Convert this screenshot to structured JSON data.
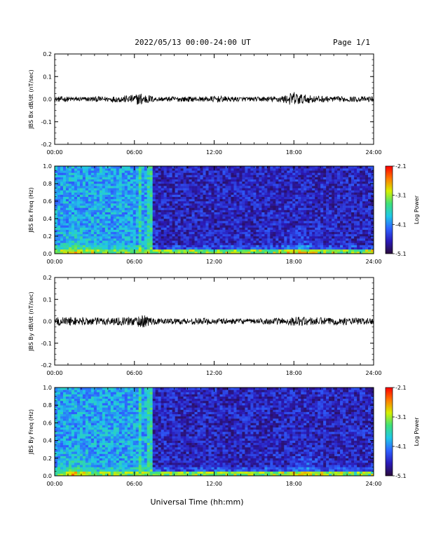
{
  "header": {
    "title": "2022/05/13  00:00-24:00 UT",
    "page": "Page 1/1"
  },
  "x_axis_title": "Universal Time (hh:mm)",
  "colors": {
    "trace": "#000000",
    "colorbar_stops": [
      "#2a0b3a",
      "#2a1ab8",
      "#2e60ff",
      "#20c8e6",
      "#3fe07a",
      "#d6f000",
      "#ff7a00",
      "#ff0000"
    ]
  },
  "chart_data": [
    {
      "type": "line",
      "ylabel": "JBS Bx dB/dt (nT/sec)",
      "x_ticks": [
        "00:00",
        "06:00",
        "12:00",
        "18:00",
        "24:00"
      ],
      "y_ticks": [
        "0.2",
        "0.1",
        "0.0",
        "-0.1",
        "-0.2"
      ],
      "ylim": [
        -0.2,
        0.2
      ],
      "xlim_hours": [
        0,
        24
      ],
      "series": [
        {
          "x_hours": [
            0,
            1,
            2,
            3,
            4,
            5,
            6,
            6.5,
            7,
            7.5,
            8,
            9,
            10,
            11,
            12,
            13,
            14,
            15,
            16,
            17,
            17.5,
            18,
            18.5,
            19,
            20,
            21,
            22,
            23,
            24
          ],
          "amplitude": [
            0.012,
            0.012,
            0.01,
            0.012,
            0.012,
            0.015,
            0.02,
            0.03,
            0.02,
            0.012,
            0.01,
            0.012,
            0.012,
            0.01,
            0.015,
            0.012,
            0.01,
            0.01,
            0.012,
            0.015,
            0.02,
            0.035,
            0.025,
            0.018,
            0.015,
            0.012,
            0.012,
            0.012,
            0.012
          ]
        }
      ]
    },
    {
      "type": "heatmap",
      "ylabel": "JBS Bx Freq (Hz)",
      "x_ticks": [
        "00:00",
        "06:00",
        "12:00",
        "18:00",
        "24:00"
      ],
      "y_ticks": [
        "1.0",
        "0.8",
        "0.6",
        "0.4",
        "0.2",
        "0.0"
      ],
      "ylim": [
        0,
        1
      ],
      "colorbar": {
        "label": "Log Power",
        "ticks": [
          "-2.1",
          "-3.1",
          "-4.1",
          "-5.1"
        ],
        "range": [
          -5.1,
          -2.1
        ]
      },
      "features": {
        "bright_until_hours": 7.3,
        "hotspots_hours": [
          1.5,
          18.5
        ]
      }
    },
    {
      "type": "line",
      "ylabel": "JBS By dB/dt (nT/sec)",
      "x_ticks": [
        "00:00",
        "06:00",
        "12:00",
        "18:00",
        "24:00"
      ],
      "y_ticks": [
        "0.2",
        "0.1",
        "0.0",
        "-0.1",
        "-0.2"
      ],
      "ylim": [
        -0.2,
        0.2
      ],
      "xlim_hours": [
        0,
        24
      ],
      "series": [
        {
          "x_hours": [
            0,
            1,
            2,
            3,
            4,
            5,
            6,
            6.5,
            7,
            7.5,
            8,
            9,
            10,
            11,
            12,
            13,
            14,
            15,
            16,
            17,
            17.5,
            18,
            18.5,
            19,
            20,
            21,
            22,
            23,
            24
          ],
          "amplitude": [
            0.02,
            0.02,
            0.018,
            0.018,
            0.018,
            0.018,
            0.022,
            0.03,
            0.025,
            0.015,
            0.012,
            0.014,
            0.015,
            0.015,
            0.014,
            0.013,
            0.012,
            0.012,
            0.014,
            0.016,
            0.018,
            0.02,
            0.022,
            0.02,
            0.018,
            0.016,
            0.016,
            0.016,
            0.016
          ]
        }
      ]
    },
    {
      "type": "heatmap",
      "ylabel": "JBS By Freq (Hz)",
      "x_ticks": [
        "00:00",
        "06:00",
        "12:00",
        "18:00",
        "24:00"
      ],
      "y_ticks": [
        "1.0",
        "0.8",
        "0.6",
        "0.4",
        "0.2",
        "0.0"
      ],
      "ylim": [
        0,
        1
      ],
      "colorbar": {
        "label": "Log Power",
        "ticks": [
          "-2.1",
          "-3.1",
          "-4.1",
          "-5.1"
        ],
        "range": [
          -5.1,
          -2.1
        ]
      },
      "features": {
        "bright_until_hours": 7.3,
        "hotspots_hours": [
          1.5,
          19.0
        ]
      }
    }
  ]
}
